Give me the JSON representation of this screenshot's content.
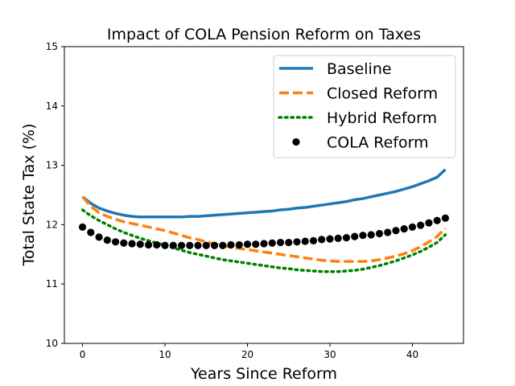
{
  "chart_data": {
    "type": "line",
    "title": "Impact of COLA Pension Reform on Taxes",
    "xlabel": "Years Since Reform",
    "ylabel": "Total State Tax (%)",
    "xlim": [
      -2.2,
      46.2
    ],
    "ylim": [
      10,
      15
    ],
    "xticks": [
      0,
      10,
      20,
      30,
      40
    ],
    "yticks": [
      10,
      11,
      12,
      13,
      14,
      15
    ],
    "grid": false,
    "legend_position": "upper-right",
    "series": [
      {
        "name": "Baseline",
        "style": "solid",
        "color": "#1f77b4",
        "x": [
          0,
          1,
          2,
          3,
          4,
          5,
          6,
          7,
          8,
          9,
          10,
          11,
          12,
          13,
          14,
          15,
          16,
          17,
          18,
          19,
          20,
          21,
          22,
          23,
          24,
          25,
          26,
          27,
          28,
          29,
          30,
          31,
          32,
          33,
          34,
          35,
          36,
          37,
          38,
          39,
          40,
          41,
          42,
          43,
          44
        ],
        "y": [
          12.47,
          12.36,
          12.28,
          12.23,
          12.19,
          12.16,
          12.14,
          12.13,
          12.13,
          12.13,
          12.13,
          12.13,
          12.13,
          12.14,
          12.14,
          12.15,
          12.16,
          12.17,
          12.18,
          12.19,
          12.2,
          12.21,
          12.22,
          12.23,
          12.25,
          12.26,
          12.28,
          12.29,
          12.31,
          12.33,
          12.35,
          12.37,
          12.39,
          12.42,
          12.44,
          12.47,
          12.5,
          12.53,
          12.56,
          12.6,
          12.64,
          12.69,
          12.74,
          12.8,
          12.93
        ]
      },
      {
        "name": "Closed Reform",
        "style": "dashed",
        "color": "#ff7f0e",
        "x": [
          0,
          1,
          2,
          3,
          4,
          5,
          6,
          7,
          8,
          9,
          10,
          11,
          12,
          13,
          14,
          15,
          16,
          17,
          18,
          19,
          20,
          21,
          22,
          23,
          24,
          25,
          26,
          27,
          28,
          29,
          30,
          31,
          32,
          33,
          34,
          35,
          36,
          37,
          38,
          39,
          40,
          41,
          42,
          43,
          44
        ],
        "y": [
          12.47,
          12.31,
          12.2,
          12.14,
          12.09,
          12.05,
          12.02,
          11.99,
          11.96,
          11.93,
          11.9,
          11.86,
          11.82,
          11.78,
          11.75,
          11.71,
          11.68,
          11.65,
          11.62,
          11.6,
          11.58,
          11.56,
          11.54,
          11.52,
          11.5,
          11.48,
          11.46,
          11.44,
          11.42,
          11.4,
          11.39,
          11.38,
          11.38,
          11.38,
          11.38,
          11.39,
          11.41,
          11.44,
          11.47,
          11.51,
          11.56,
          11.63,
          11.71,
          11.8,
          11.94
        ]
      },
      {
        "name": "Hybrid Reform",
        "style": "dotted",
        "color": "#008000",
        "x": [
          0,
          1,
          2,
          3,
          4,
          5,
          6,
          7,
          8,
          9,
          10,
          11,
          12,
          13,
          14,
          15,
          16,
          17,
          18,
          19,
          20,
          21,
          22,
          23,
          24,
          25,
          26,
          27,
          28,
          29,
          30,
          31,
          32,
          33,
          34,
          35,
          36,
          37,
          38,
          39,
          40,
          41,
          42,
          43,
          44
        ],
        "y": [
          12.25,
          12.15,
          12.07,
          12.0,
          11.93,
          11.87,
          11.82,
          11.77,
          11.73,
          11.69,
          11.65,
          11.61,
          11.57,
          11.53,
          11.5,
          11.47,
          11.44,
          11.41,
          11.39,
          11.37,
          11.35,
          11.33,
          11.31,
          11.29,
          11.27,
          11.26,
          11.24,
          11.23,
          11.22,
          11.21,
          11.21,
          11.21,
          11.22,
          11.23,
          11.25,
          11.28,
          11.31,
          11.35,
          11.39,
          11.44,
          11.49,
          11.55,
          11.62,
          11.7,
          11.83
        ]
      },
      {
        "name": "COLA Reform",
        "style": "markers",
        "color": "#000000",
        "x": [
          0,
          1,
          2,
          3,
          4,
          5,
          6,
          7,
          8,
          9,
          10,
          11,
          12,
          13,
          14,
          15,
          16,
          17,
          18,
          19,
          20,
          21,
          22,
          23,
          24,
          25,
          26,
          27,
          28,
          29,
          30,
          31,
          32,
          33,
          34,
          35,
          36,
          37,
          38,
          39,
          40,
          41,
          42,
          43,
          44
        ],
        "y": [
          11.96,
          11.87,
          11.79,
          11.74,
          11.71,
          11.69,
          11.68,
          11.67,
          11.66,
          11.66,
          11.65,
          11.65,
          11.65,
          11.65,
          11.65,
          11.65,
          11.65,
          11.65,
          11.66,
          11.66,
          11.67,
          11.67,
          11.68,
          11.69,
          11.7,
          11.7,
          11.71,
          11.72,
          11.73,
          11.75,
          11.76,
          11.77,
          11.78,
          11.8,
          11.82,
          11.83,
          11.85,
          11.87,
          11.9,
          11.93,
          11.96,
          11.99,
          12.03,
          12.07,
          12.11
        ]
      }
    ]
  }
}
